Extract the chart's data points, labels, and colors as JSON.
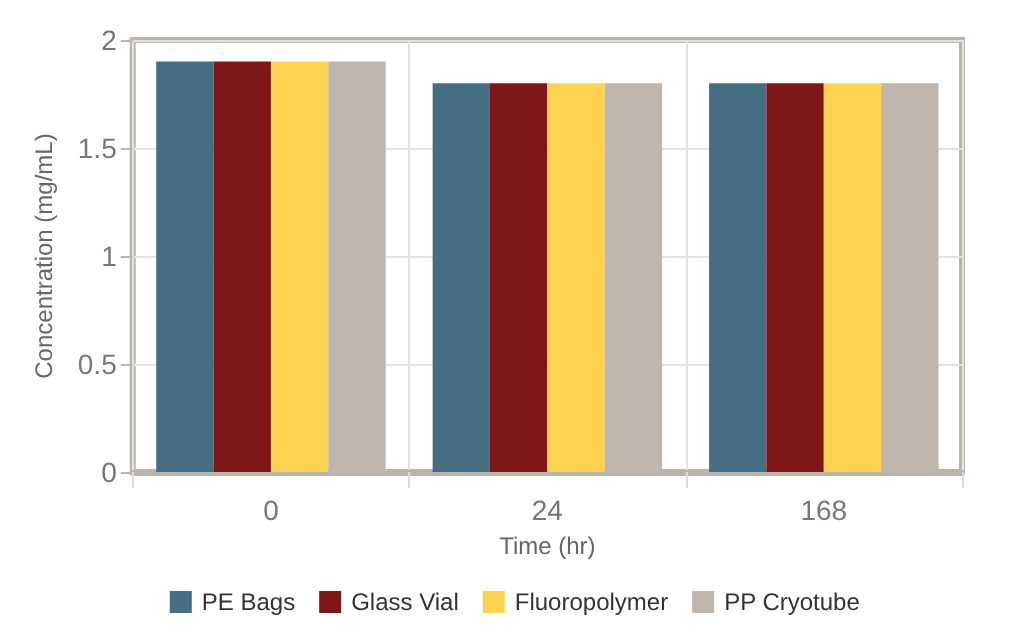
{
  "chart_data": {
    "type": "bar",
    "xlabel": "Time (hr)",
    "ylabel": "Concentration (mg/mL)",
    "categories": [
      "0",
      "24",
      "168"
    ],
    "series": [
      {
        "name": "PE Bags",
        "color": "#466e82",
        "values": [
          1.9,
          1.8,
          1.8
        ]
      },
      {
        "name": "Glass Vial",
        "color": "#7f1718",
        "values": [
          1.9,
          1.8,
          1.8
        ]
      },
      {
        "name": "Fluoropolymer",
        "color": "#fdd34f",
        "values": [
          1.9,
          1.8,
          1.8
        ]
      },
      {
        "name": "PP Cryotube",
        "color": "#bfb6ae",
        "values": [
          1.9,
          1.8,
          1.8
        ]
      }
    ],
    "ylim": [
      0,
      2
    ],
    "yticks": [
      0,
      0.5,
      1,
      1.5,
      2
    ],
    "grid": true,
    "legend": "bottom"
  }
}
